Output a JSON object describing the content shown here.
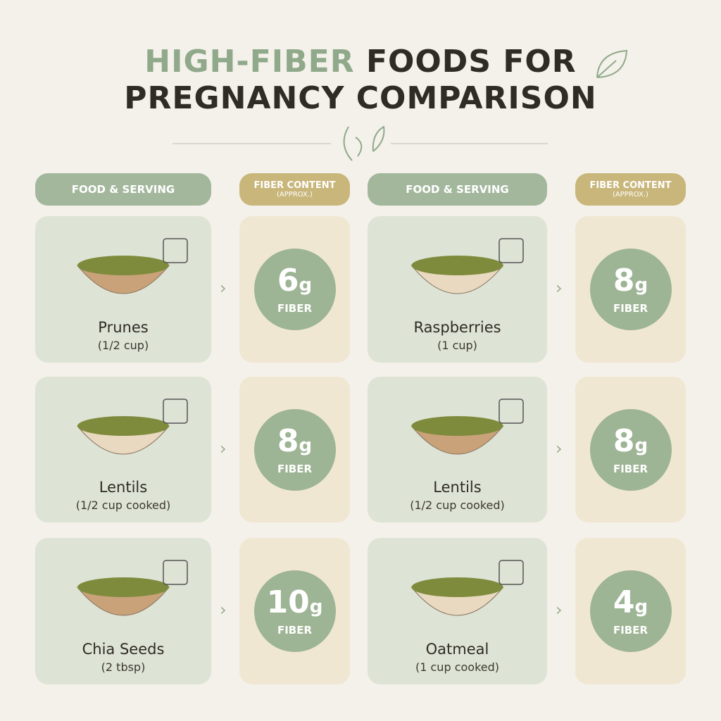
{
  "header": {
    "title_highlight": "HIGH-FIBER",
    "title_line1_rest": "FOODS FOR",
    "title_line2": "PREGNANCY COMPARISON"
  },
  "columns": [
    {
      "food_header": "FOOD & SERVING",
      "fiber_header": "FIBER CONTENT",
      "fiber_subheader": "(APPROX.)"
    },
    {
      "food_header": "FOOD & SERVING",
      "fiber_header": "FIBER CONTENT",
      "fiber_subheader": "(APPROX.)"
    }
  ],
  "rows": [
    [
      {
        "name": "Prunes",
        "serving": "(1/2 cup)",
        "amount": 6,
        "amount_unit": "g",
        "fiber_label": "FIBER"
      },
      {
        "name": "Raspberries",
        "serving": "(1 cup)",
        "amount": 8,
        "amount_unit": "g",
        "fiber_label": "FIBER"
      }
    ],
    [
      {
        "name": "Lentils",
        "serving": "(1/2 cup cooked)",
        "amount": 8,
        "amount_unit": "g",
        "fiber_label": "FIBER"
      },
      {
        "name": "Lentils",
        "serving": "(1/2 cup cooked)",
        "amount": 8,
        "amount_unit": "g",
        "fiber_label": "FIBER"
      }
    ],
    [
      {
        "name": "Chia Seeds",
        "serving": "(2 tbsp)",
        "amount": 10,
        "amount_unit": "g",
        "fiber_label": "FIBER"
      },
      {
        "name": "Oatmeal",
        "serving": "(1 cup cooked)",
        "amount": 4,
        "amount_unit": "g",
        "fiber_label": "FIBER"
      }
    ]
  ]
}
